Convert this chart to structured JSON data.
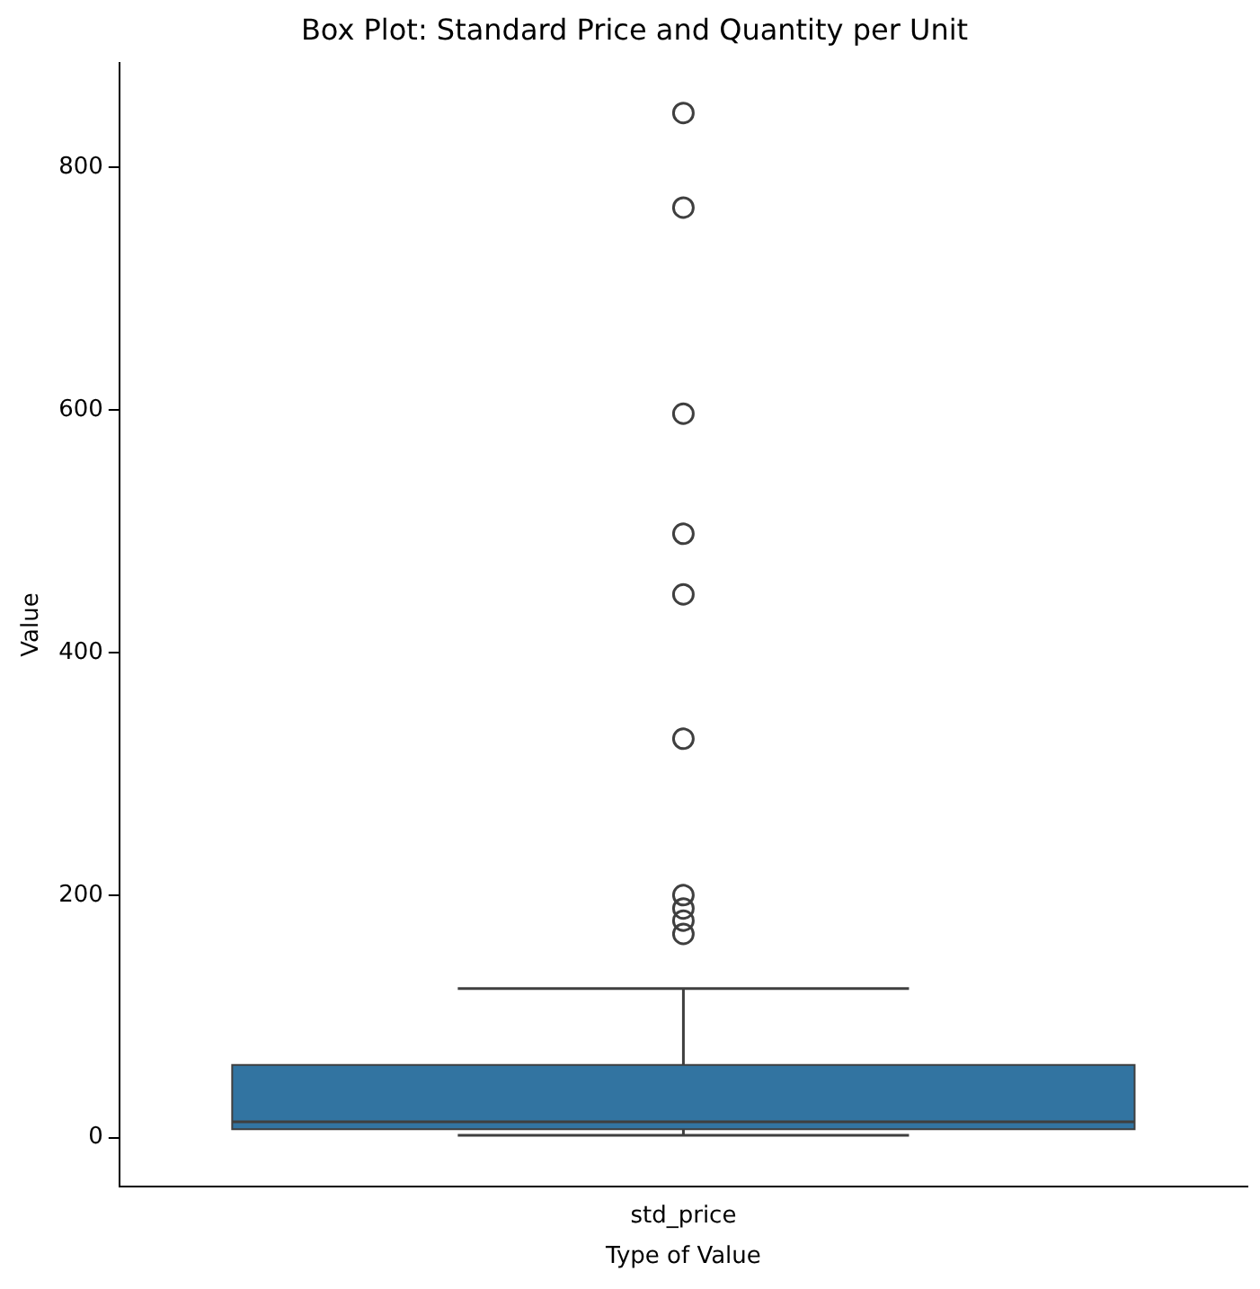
{
  "chart_data": {
    "type": "box",
    "title": "Box Plot: Standard Price and Quantity per Unit",
    "xlabel": "Type of Value",
    "ylabel": "Value",
    "categories": [
      "std_price"
    ],
    "color": "#3274a1",
    "boxes": [
      {
        "low": 2,
        "q1": 7,
        "median": 13,
        "q3": 60,
        "high": 123,
        "outliers": [
          845,
          767,
          597,
          498,
          448,
          329,
          200,
          189,
          179,
          168
        ]
      }
    ],
    "ylim": [
      -40,
      886
    ],
    "yticks": [
      0,
      200,
      400,
      600,
      800
    ],
    "grid": false,
    "legend": false,
    "marker": "circle"
  }
}
